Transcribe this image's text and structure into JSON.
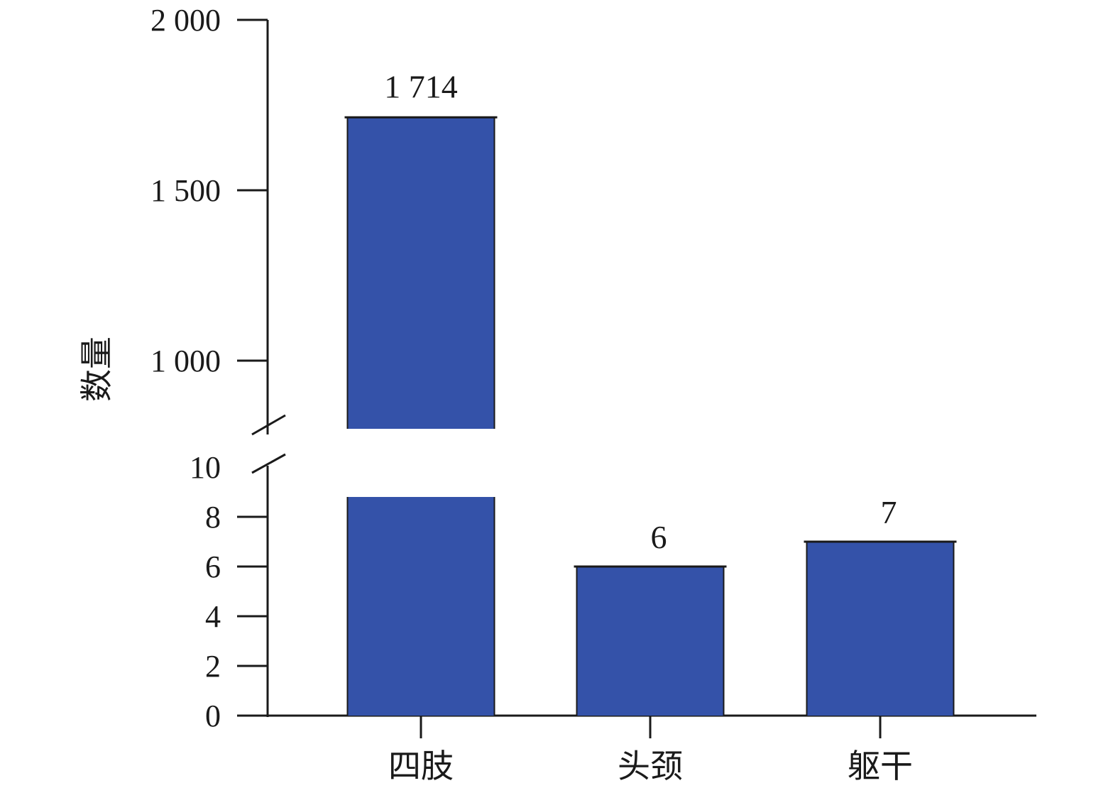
{
  "chart_data": {
    "type": "bar",
    "title": "",
    "xlabel": "",
    "ylabel": "数量",
    "categories": [
      "四肢",
      "头颈",
      "躯干"
    ],
    "values": [
      1714,
      6,
      7
    ],
    "value_labels": [
      "1 714",
      "6",
      "7"
    ],
    "bar_color": "#3452a9",
    "broken_axis": true,
    "lower_segment": {
      "ylim": [
        0,
        10
      ],
      "ticks": [
        "0",
        "2",
        "4",
        "6",
        "8",
        "10"
      ]
    },
    "upper_segment": {
      "ylim": [
        850,
        2000
      ],
      "ticks": [
        "1 000",
        "1 500",
        "2 000"
      ]
    },
    "grid": false,
    "legend": "none"
  }
}
